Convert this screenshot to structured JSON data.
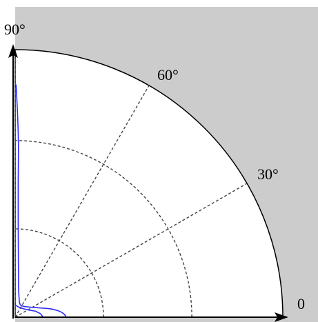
{
  "chart_data": {
    "type": "polar",
    "angle_ticks": [
      {
        "angle": 0,
        "label": "0"
      },
      {
        "angle": 30,
        "label": "30°"
      },
      {
        "angle": 60,
        "label": "60°"
      },
      {
        "angle": 90,
        "label": "90°"
      }
    ],
    "angle_range": [
      0,
      90
    ],
    "radius_max": 1.0,
    "radial_grid": [
      0.33,
      0.66
    ],
    "grid": true,
    "background_color": "#cccccc",
    "plot_color": "#ffffff",
    "series_color": "#2b2bff",
    "series": [
      {
        "points": [
          {
            "theta": 0.0,
            "r": 0.19
          },
          {
            "theta": 3.0,
            "r": 0.185
          },
          {
            "theta": 6.0,
            "r": 0.175
          },
          {
            "theta": 9.0,
            "r": 0.16
          },
          {
            "theta": 12.5,
            "r": 0.14
          },
          {
            "theta": 16.0,
            "r": 0.12
          },
          {
            "theta": 20.0,
            "r": 0.1
          },
          {
            "theta": 25.0,
            "r": 0.085
          },
          {
            "theta": 32.0,
            "r": 0.07
          },
          {
            "theta": 40.0,
            "r": 0.06
          },
          {
            "theta": 48.0,
            "r": 0.053
          },
          {
            "theta": 56.0,
            "r": 0.05
          },
          {
            "theta": 64.0,
            "r": 0.049
          },
          {
            "theta": 70.0,
            "r": 0.052
          },
          {
            "theta": 75.0,
            "r": 0.06
          },
          {
            "theta": 79.0,
            "r": 0.075
          },
          {
            "theta": 82.0,
            "r": 0.095
          },
          {
            "theta": 84.0,
            "r": 0.12
          },
          {
            "theta": 85.5,
            "r": 0.16
          },
          {
            "theta": 86.5,
            "r": 0.2
          },
          {
            "theta": 87.3,
            "r": 0.25
          },
          {
            "theta": 87.8,
            "r": 0.3
          },
          {
            "theta": 88.2,
            "r": 0.36
          },
          {
            "theta": 88.5,
            "r": 0.43
          },
          {
            "theta": 88.7,
            "r": 0.5
          },
          {
            "theta": 88.8,
            "r": 0.57
          },
          {
            "theta": 88.9,
            "r": 0.64
          },
          {
            "theta": 89.1,
            "r": 0.7
          },
          {
            "theta": 89.3,
            "r": 0.75
          },
          {
            "theta": 89.5,
            "r": 0.8
          },
          {
            "theta": 89.7,
            "r": 0.85
          },
          {
            "theta": 89.8,
            "r": 0.87
          }
        ]
      },
      {
        "points": [
          {
            "theta": 0.0,
            "r": 0.105
          },
          {
            "theta": 8.0,
            "r": 0.095
          },
          {
            "theta": 16.0,
            "r": 0.08
          },
          {
            "theta": 26.0,
            "r": 0.06
          },
          {
            "theta": 38.0,
            "r": 0.048
          },
          {
            "theta": 52.0,
            "r": 0.042
          },
          {
            "theta": 66.0,
            "r": 0.04
          },
          {
            "theta": 78.0,
            "r": 0.041
          },
          {
            "theta": 86.0,
            "r": 0.044
          },
          {
            "theta": 90.0,
            "r": 0.045
          }
        ]
      }
    ]
  }
}
